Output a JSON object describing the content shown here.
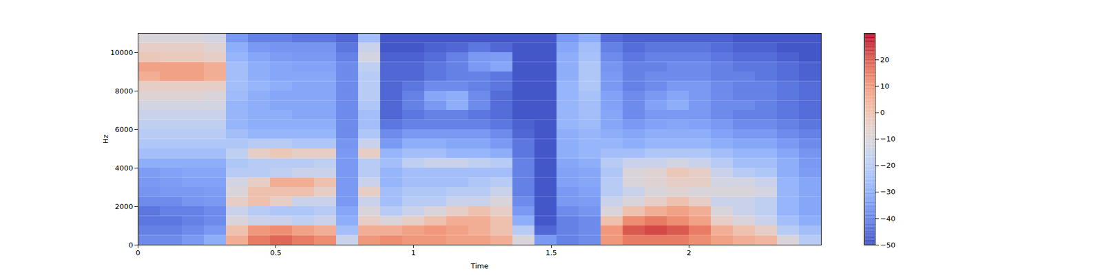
{
  "chart_data": {
    "type": "heatmap",
    "x_label": "Time",
    "y_label": "Hz",
    "xlim": [
      0,
      2.48
    ],
    "ylim": [
      0,
      11000
    ],
    "xticks": [
      0,
      0.5,
      1,
      1.5,
      2
    ],
    "yticks": [
      0,
      2000,
      4000,
      6000,
      8000,
      10000
    ],
    "x_edges": [
      0,
      0.08,
      0.16,
      0.24,
      0.32,
      0.4,
      0.48,
      0.56,
      0.64,
      0.72,
      0.8,
      0.88,
      0.96,
      1.04,
      1.12,
      1.2,
      1.28,
      1.36,
      1.44,
      1.52,
      1.6,
      1.68,
      1.76,
      1.84,
      1.92,
      2.0,
      2.08,
      2.16,
      2.24,
      2.32,
      2.4,
      2.48
    ],
    "y_edges": [
      0,
      500,
      1000,
      1500,
      2000,
      2500,
      3000,
      3500,
      4000,
      4500,
      5000,
      5500,
      6000,
      6500,
      7000,
      7500,
      8000,
      8500,
      9000,
      9500,
      10000,
      10500,
      11000
    ],
    "values": [
      [
        -38,
        -38,
        -35,
        -30,
        5,
        15,
        18,
        15,
        12,
        -15,
        10,
        12,
        10,
        10,
        8,
        8,
        5,
        -10,
        -35,
        -40,
        -38,
        10,
        15,
        15,
        15,
        12,
        8,
        5,
        3,
        -10,
        -20
      ],
      [
        -40,
        -40,
        -38,
        -35,
        0,
        10,
        12,
        8,
        5,
        -25,
        5,
        5,
        8,
        10,
        8,
        5,
        0,
        -20,
        -45,
        -40,
        -38,
        10,
        20,
        22,
        20,
        15,
        5,
        0,
        -5,
        -20,
        -25
      ],
      [
        -42,
        -42,
        -40,
        -38,
        -10,
        -15,
        -15,
        -18,
        -15,
        -30,
        -5,
        -10,
        -5,
        0,
        5,
        5,
        0,
        -30,
        -48,
        -40,
        -38,
        0,
        12,
        15,
        12,
        8,
        -5,
        -10,
        -15,
        -25,
        -30
      ],
      [
        -42,
        -40,
        -40,
        -38,
        -15,
        -20,
        -22,
        -22,
        -20,
        -32,
        -10,
        -20,
        -15,
        -10,
        -5,
        0,
        -5,
        -35,
        -48,
        -38,
        -36,
        -10,
        0,
        5,
        8,
        5,
        -10,
        -15,
        -18,
        -28,
        -32
      ],
      [
        -38,
        -38,
        -36,
        -35,
        -5,
        0,
        -5,
        -15,
        -15,
        -35,
        -15,
        -25,
        -20,
        -20,
        -15,
        -15,
        -10,
        -38,
        -48,
        -35,
        -34,
        -15,
        -10,
        -5,
        0,
        -5,
        -15,
        -15,
        -18,
        -28,
        -32
      ],
      [
        -36,
        -35,
        -35,
        -34,
        -10,
        0,
        0,
        0,
        -5,
        -35,
        -5,
        -25,
        -22,
        -22,
        -20,
        -20,
        -15,
        -40,
        -48,
        -35,
        -33,
        -20,
        -15,
        -10,
        -8,
        -10,
        -10,
        -10,
        -12,
        -28,
        -32
      ],
      [
        -35,
        -34,
        -33,
        -33,
        -12,
        -5,
        5,
        5,
        0,
        -35,
        -15,
        -28,
        -25,
        -25,
        -25,
        -22,
        -20,
        -40,
        -48,
        -33,
        -32,
        -20,
        -10,
        -8,
        -5,
        -5,
        -12,
        -12,
        -15,
        -28,
        -32
      ],
      [
        -34,
        -33,
        -32,
        -32,
        -20,
        -20,
        -18,
        -15,
        -15,
        -35,
        -20,
        -28,
        -25,
        -25,
        -25,
        -25,
        -25,
        -40,
        -48,
        -33,
        -32,
        -22,
        -10,
        -8,
        -2,
        -5,
        -15,
        -20,
        -22,
        -30,
        -34
      ],
      [
        -30,
        -30,
        -30,
        -30,
        -22,
        -20,
        -20,
        -20,
        -18,
        -35,
        -20,
        -25,
        -18,
        -15,
        -15,
        -18,
        -20,
        -40,
        -48,
        -32,
        -30,
        -20,
        -15,
        -15,
        -12,
        -15,
        -20,
        -25,
        -25,
        -30,
        -35
      ],
      [
        -25,
        -25,
        -25,
        -25,
        -18,
        -5,
        -2,
        -5,
        -5,
        -35,
        -5,
        -28,
        -25,
        -25,
        -28,
        -28,
        -30,
        -42,
        -48,
        -30,
        -28,
        -25,
        -25,
        -22,
        -22,
        -22,
        -25,
        -28,
        -28,
        -32,
        -36
      ],
      [
        -22,
        -22,
        -22,
        -22,
        -22,
        -20,
        -20,
        -22,
        -22,
        -36,
        -15,
        -35,
        -30,
        -30,
        -32,
        -32,
        -35,
        -42,
        -48,
        -30,
        -28,
        -28,
        -30,
        -28,
        -28,
        -28,
        -30,
        -32,
        -32,
        -35,
        -38
      ],
      [
        -20,
        -20,
        -20,
        -20,
        -25,
        -28,
        -28,
        -28,
        -28,
        -38,
        -22,
        -38,
        -35,
        -35,
        -35,
        -35,
        -38,
        -45,
        -48,
        -30,
        -28,
        -30,
        -32,
        -30,
        -30,
        -30,
        -33,
        -35,
        -35,
        -38,
        -40
      ],
      [
        -18,
        -18,
        -18,
        -18,
        -28,
        -30,
        -30,
        -30,
        -30,
        -38,
        -25,
        -42,
        -40,
        -40,
        -40,
        -40,
        -42,
        -46,
        -48,
        -28,
        -26,
        -32,
        -35,
        -33,
        -32,
        -33,
        -35,
        -38,
        -38,
        -40,
        -42
      ],
      [
        -15,
        -15,
        -15,
        -15,
        -28,
        -30,
        -30,
        -32,
        -32,
        -38,
        -25,
        -45,
        -42,
        -40,
        -40,
        -42,
        -44,
        -48,
        -48,
        -28,
        -25,
        -32,
        -38,
        -35,
        -35,
        -35,
        -38,
        -40,
        -40,
        -42,
        -44
      ],
      [
        -12,
        -12,
        -12,
        -12,
        -28,
        -30,
        -32,
        -32,
        -32,
        -38,
        -22,
        -45,
        -40,
        -35,
        -30,
        -38,
        -44,
        -48,
        -48,
        -28,
        -25,
        -33,
        -38,
        -33,
        -30,
        -35,
        -38,
        -38,
        -40,
        -42,
        -44
      ],
      [
        -8,
        -8,
        -8,
        -10,
        -26,
        -30,
        -32,
        -32,
        -32,
        -38,
        -20,
        -45,
        -40,
        -32,
        -30,
        -38,
        -44,
        -48,
        -48,
        -28,
        -24,
        -33,
        -38,
        -35,
        -32,
        -35,
        -38,
        -40,
        -40,
        -42,
        -44
      ],
      [
        -5,
        -5,
        -5,
        -5,
        -25,
        -28,
        -30,
        -32,
        -32,
        -38,
        -20,
        -45,
        -42,
        -38,
        -38,
        -40,
        -42,
        -48,
        -48,
        -28,
        -22,
        -35,
        -40,
        -38,
        -35,
        -35,
        -38,
        -40,
        -40,
        -42,
        -44
      ],
      [
        5,
        8,
        8,
        5,
        -25,
        -30,
        -32,
        -32,
        -32,
        -38,
        -20,
        -45,
        -45,
        -42,
        -40,
        -40,
        -42,
        -48,
        -48,
        -30,
        -22,
        -35,
        -40,
        -38,
        -38,
        -38,
        -40,
        -40,
        -42,
        -44,
        -46
      ],
      [
        8,
        8,
        8,
        5,
        -25,
        -30,
        -32,
        -33,
        -33,
        -38,
        -18,
        -45,
        -45,
        -42,
        -40,
        -35,
        -32,
        -48,
        -48,
        -30,
        -22,
        -36,
        -40,
        -40,
        -38,
        -38,
        -40,
        -42,
        -42,
        -44,
        -46
      ],
      [
        -2,
        -3,
        -3,
        -5,
        -28,
        -32,
        -34,
        -35,
        -35,
        -40,
        -12,
        -46,
        -46,
        -44,
        -40,
        -35,
        -34,
        -48,
        -48,
        -30,
        -24,
        -38,
        -42,
        -40,
        -40,
        -40,
        -42,
        -44,
        -44,
        -46,
        -48
      ],
      [
        -5,
        -5,
        -5,
        -8,
        -30,
        -35,
        -36,
        -36,
        -36,
        -42,
        -15,
        -48,
        -48,
        -46,
        -45,
        -42,
        -45,
        -48,
        -48,
        -32,
        -25,
        -40,
        -44,
        -42,
        -42,
        -42,
        -44,
        -46,
        -46,
        -48,
        -48
      ],
      [
        -10,
        -10,
        -10,
        -12,
        -35,
        -40,
        -40,
        -42,
        -42,
        -45,
        -25,
        -48,
        -48,
        -48,
        -48,
        -48,
        -48,
        -48,
        -48,
        -35,
        -30,
        -44,
        -46,
        -46,
        -46,
        -46,
        -46,
        -48,
        -48,
        -48,
        -48
      ]
    ],
    "colorbar": {
      "range": [
        -50,
        30
      ],
      "ticks": [
        {
          "value": -50,
          "label": "−50"
        },
        {
          "value": -40,
          "label": "−40"
        },
        {
          "value": -30,
          "label": "−30"
        },
        {
          "value": -20,
          "label": "−20"
        },
        {
          "value": -10,
          "label": "−10"
        },
        0,
        10,
        20
      ]
    }
  }
}
